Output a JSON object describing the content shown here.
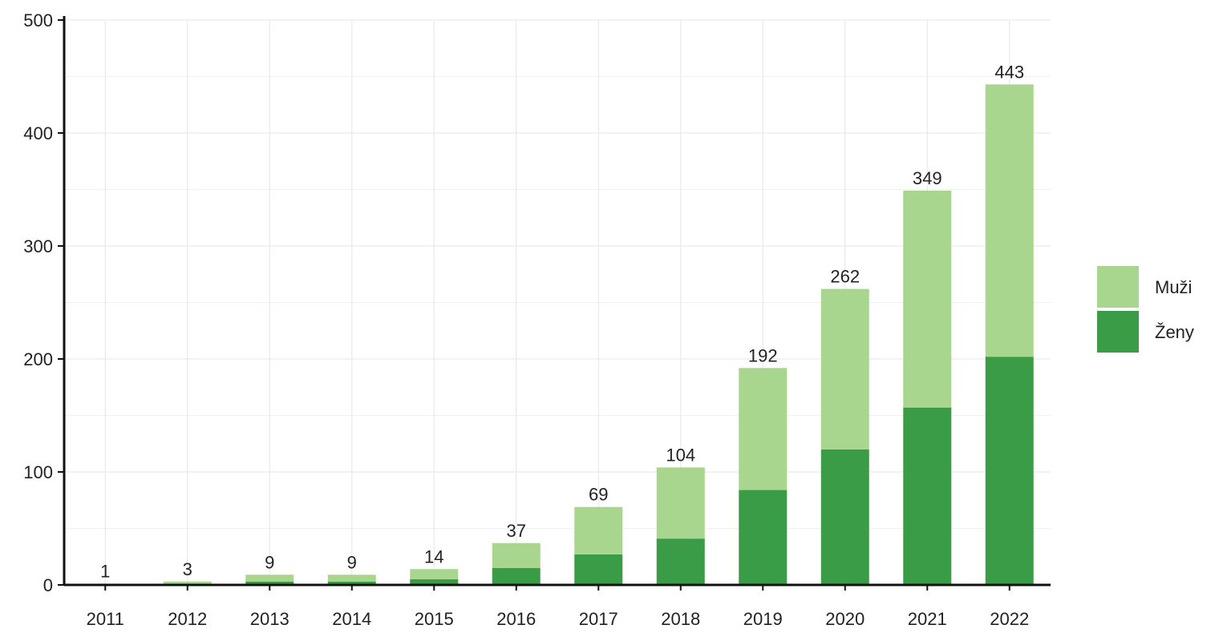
{
  "chart_data": {
    "type": "bar",
    "stacked": true,
    "categories": [
      "2011",
      "2012",
      "2013",
      "2014",
      "2015",
      "2016",
      "2017",
      "2018",
      "2019",
      "2020",
      "2021",
      "2022"
    ],
    "series": [
      {
        "name": "Ženy",
        "values": [
          0,
          1,
          3,
          3,
          5,
          15,
          27,
          41,
          84,
          120,
          157,
          202
        ],
        "color": "#3a9c47"
      },
      {
        "name": "Muži",
        "values": [
          1,
          2,
          6,
          6,
          9,
          22,
          42,
          63,
          108,
          142,
          192,
          241
        ],
        "color": "#a8d68f"
      }
    ],
    "totals": [
      1,
      3,
      9,
      9,
      14,
      37,
      69,
      104,
      192,
      262,
      349,
      443
    ],
    "totals_labels": [
      "1",
      "3",
      "9",
      "9",
      "14",
      "37",
      "69",
      "104",
      "192",
      "262",
      "349",
      "443"
    ],
    "y_ticks": [
      0,
      100,
      200,
      300,
      400,
      500
    ],
    "y_tick_labels": [
      "0",
      "100",
      "200",
      "300",
      "400",
      "500"
    ],
    "ylim": [
      0,
      500
    ],
    "title": "",
    "xlabel": "",
    "ylabel": "",
    "grid": true,
    "legend": {
      "position": "right",
      "items": [
        {
          "label": "Muži",
          "color": "#a8d68f"
        },
        {
          "label": "Ženy",
          "color": "#3a9c47"
        }
      ]
    }
  }
}
